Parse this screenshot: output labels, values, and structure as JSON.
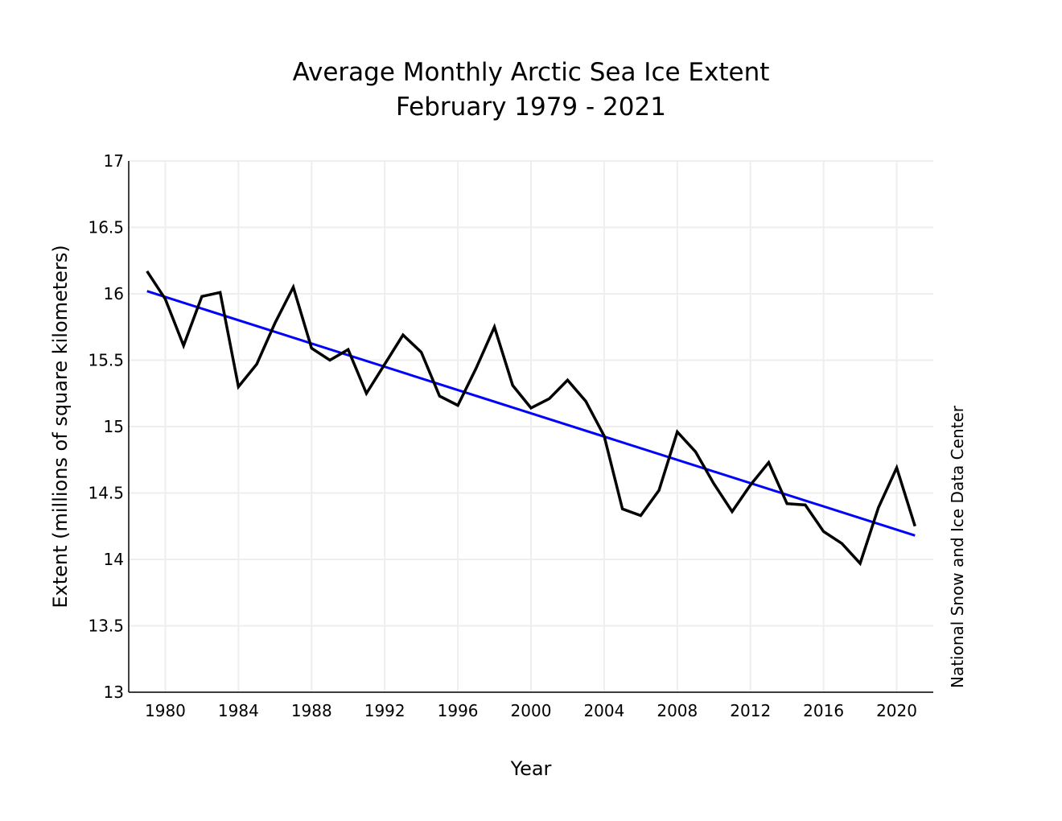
{
  "chart_data": {
    "type": "line",
    "title": "Average Monthly Arctic Sea Ice Extent",
    "subtitle": "February 1979 - 2021",
    "xlabel": "Year",
    "ylabel": "Extent (millions of square kilometers)",
    "credit": "National Snow and Ice Data Center",
    "xlim": [
      1978,
      2022
    ],
    "ylim": [
      13,
      17
    ],
    "x_ticks": [
      1980,
      1984,
      1988,
      1992,
      1996,
      2000,
      2004,
      2008,
      2012,
      2016,
      2020
    ],
    "y_ticks": [
      13,
      13.5,
      14,
      14.5,
      15,
      15.5,
      16,
      16.5,
      17
    ],
    "grid": true,
    "colors": {
      "data": "#000000",
      "trend": "#0000ff",
      "grid": "#eeeeee"
    },
    "x": [
      1979,
      1980,
      1981,
      1982,
      1983,
      1984,
      1985,
      1986,
      1987,
      1988,
      1989,
      1990,
      1991,
      1992,
      1993,
      1994,
      1995,
      1996,
      1997,
      1998,
      1999,
      2000,
      2001,
      2002,
      2003,
      2004,
      2005,
      2006,
      2007,
      2008,
      2009,
      2010,
      2011,
      2012,
      2013,
      2014,
      2015,
      2016,
      2017,
      2018,
      2019,
      2020,
      2021
    ],
    "series": [
      {
        "values": [
          16.17,
          15.96,
          15.61,
          15.98,
          16.01,
          15.3,
          15.47,
          15.78,
          16.05,
          15.59,
          15.5,
          15.58,
          15.25,
          15.47,
          15.69,
          15.56,
          15.23,
          15.16,
          15.44,
          15.75,
          15.31,
          15.14,
          15.21,
          15.35,
          15.19,
          14.93,
          14.38,
          14.33,
          14.52,
          14.96,
          14.81,
          14.57,
          14.36,
          14.56,
          14.73,
          14.42,
          14.41,
          14.21,
          14.12,
          13.97,
          14.39,
          14.69,
          14.25
        ]
      }
    ],
    "trend": {
      "x": [
        1979,
        2021
      ],
      "values": [
        16.02,
        14.18
      ]
    }
  }
}
